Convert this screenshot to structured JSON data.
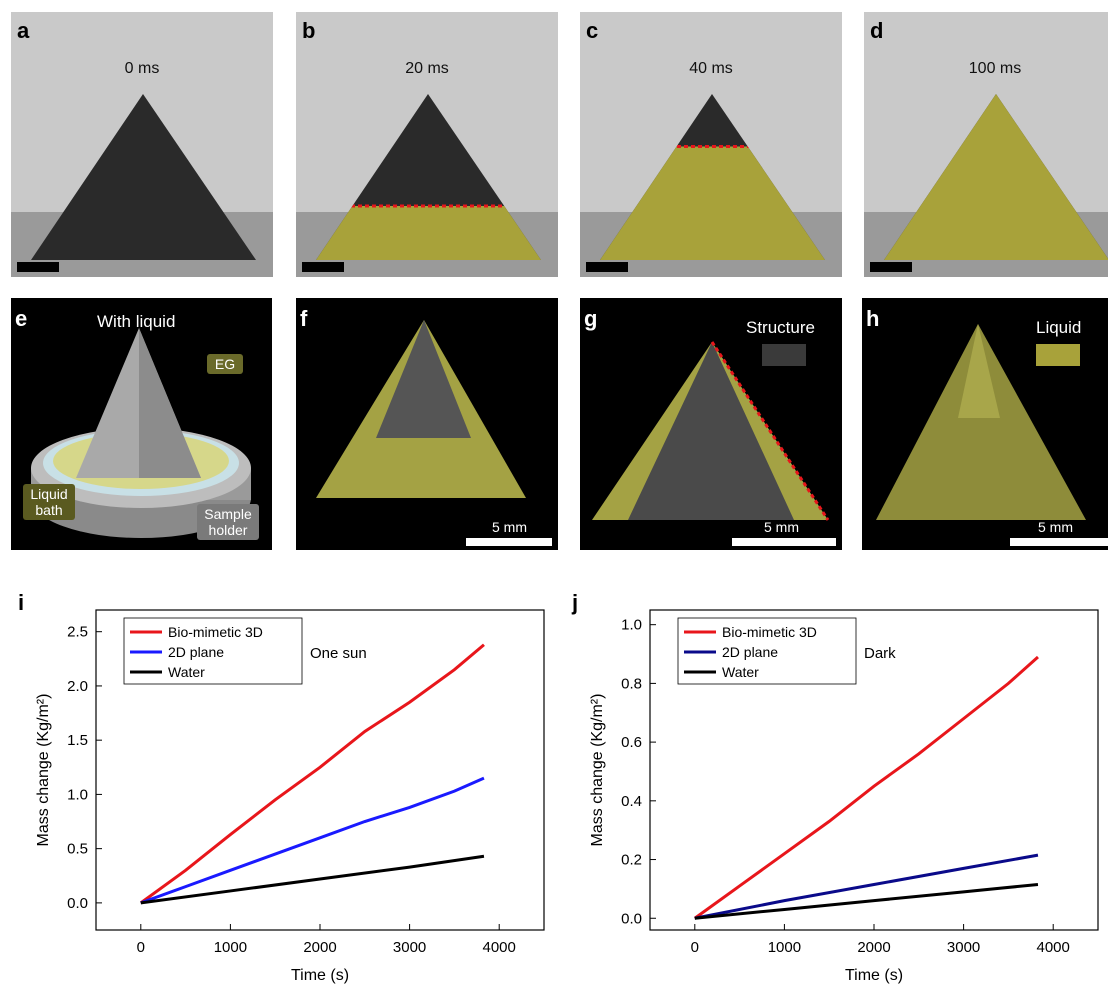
{
  "panels_top": [
    {
      "label": "a",
      "time": "0 ms",
      "wet": 0
    },
    {
      "label": "b",
      "time": "20 ms",
      "wet": 0.3
    },
    {
      "label": "c",
      "time": "40 ms",
      "wet": 0.65
    },
    {
      "label": "d",
      "time": "100 ms",
      "wet": 1
    }
  ],
  "panels_mid": {
    "e": {
      "label": "e",
      "title": "With liquid",
      "eg": "EG",
      "bath": "Liquid\nbath",
      "holder": "Sample\nholder"
    },
    "f": {
      "label": "f",
      "scale": "5 mm"
    },
    "g": {
      "label": "g",
      "legend": "Structure",
      "scale": "5 mm"
    },
    "h": {
      "label": "h",
      "legend": "Liquid",
      "scale": "5 mm"
    }
  },
  "colors": {
    "liquid": "#a8a23a",
    "structure": "#3a3a3a",
    "bio": "#e8161b",
    "plane": "#1a1aff",
    "plane_dark": "#0a0a8a",
    "water": "#000000"
  },
  "chart_data": [
    {
      "label": "i",
      "type": "line",
      "annotation": "One sun",
      "xlabel": "Time (s)",
      "ylabel": "Mass change (Kg/m²)",
      "xlim": [
        -500,
        4500
      ],
      "ylim": [
        -0.25,
        2.7
      ],
      "xticks": [
        0,
        1000,
        2000,
        3000,
        4000
      ],
      "yticks": [
        0.0,
        0.5,
        1.0,
        1.5,
        2.0,
        2.5
      ],
      "series": [
        {
          "name": "Bio-mimetic 3D",
          "x": [
            0,
            500,
            1000,
            1500,
            2000,
            2500,
            3000,
            3500,
            3830
          ],
          "y": [
            0,
            0.3,
            0.63,
            0.95,
            1.25,
            1.58,
            1.85,
            2.15,
            2.38
          ]
        },
        {
          "name": "2D plane",
          "x": [
            0,
            500,
            1000,
            1500,
            2000,
            2500,
            3000,
            3500,
            3830
          ],
          "y": [
            0,
            0.15,
            0.3,
            0.45,
            0.6,
            0.75,
            0.88,
            1.03,
            1.15
          ]
        },
        {
          "name": "Water",
          "x": [
            0,
            1000,
            2000,
            3000,
            3830
          ],
          "y": [
            0,
            0.11,
            0.22,
            0.33,
            0.43
          ]
        }
      ]
    },
    {
      "label": "j",
      "type": "line",
      "annotation": "Dark",
      "xlabel": "Time (s)",
      "ylabel": "Mass change (Kg/m²)",
      "xlim": [
        -500,
        4500
      ],
      "ylim": [
        -0.04,
        1.05
      ],
      "xticks": [
        0,
        1000,
        2000,
        3000,
        4000
      ],
      "yticks": [
        0.0,
        0.2,
        0.4,
        0.6,
        0.8,
        1.0
      ],
      "series": [
        {
          "name": "Bio-mimetic 3D",
          "x": [
            0,
            500,
            1000,
            1500,
            2000,
            2500,
            3000,
            3500,
            3830
          ],
          "y": [
            0,
            0.11,
            0.22,
            0.33,
            0.45,
            0.56,
            0.68,
            0.8,
            0.89
          ]
        },
        {
          "name": "2D plane",
          "x": [
            0,
            1000,
            2000,
            3000,
            3830
          ],
          "y": [
            0,
            0.06,
            0.115,
            0.17,
            0.215
          ]
        },
        {
          "name": "Water",
          "x": [
            0,
            1000,
            2000,
            3000,
            3830
          ],
          "y": [
            0,
            0.03,
            0.06,
            0.09,
            0.115
          ]
        }
      ]
    }
  ]
}
